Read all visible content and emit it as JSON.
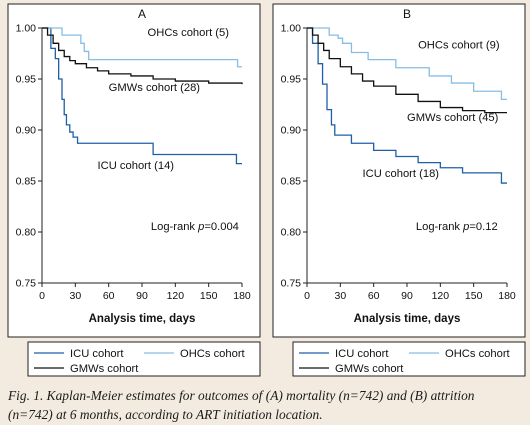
{
  "caption": "Fig. 1. Kaplan-Meier estimates for outcomes of (A) mortality (n=742) and (B) attrition (n=742) at 6 months, according to ART initiation location.",
  "legend": {
    "icu": "ICU cohort",
    "ohcs": "OHCs cohort",
    "gmws": "GMWs cohort"
  },
  "colors": {
    "icu": "#1f5fa8",
    "ohcs": "#86bde6",
    "gmws": "#111111"
  },
  "chart_data": [
    {
      "type": "line",
      "title": "A",
      "xlabel": "Analysis time, days",
      "ylabel": "",
      "xlim": [
        0,
        180
      ],
      "ylim": [
        0.75,
        1.0
      ],
      "xticks": [
        0,
        30,
        60,
        90,
        120,
        150,
        180
      ],
      "yticks": [
        1.0,
        0.95,
        0.9,
        0.85,
        0.8,
        0.75
      ],
      "yticklabels": [
        "1.00",
        "0.95",
        "0.90",
        "0.85",
        "0.80",
        "0.75"
      ],
      "annotations": [
        {
          "text": "OHCs cohort (5)",
          "x": 95,
          "y": 0.992
        },
        {
          "text": "GMWs cohort (28)",
          "x": 60,
          "y": 0.938
        },
        {
          "text": "ICU cohort (14)",
          "x": 50,
          "y": 0.862
        },
        {
          "text": "Log-rank ",
          "italic": "p",
          "rest": "=0.004",
          "x": 98,
          "y": 0.802
        }
      ],
      "series": [
        {
          "key": "icu",
          "name": "ICU cohort",
          "x": [
            0,
            8,
            12,
            15,
            18,
            20,
            22,
            25,
            28,
            32,
            100,
            175,
            180
          ],
          "y": [
            1.0,
            0.98,
            0.97,
            0.95,
            0.93,
            0.915,
            0.905,
            0.898,
            0.893,
            0.887,
            0.876,
            0.867,
            0.867
          ]
        },
        {
          "key": "ohcs",
          "name": "OHCs cohort",
          "x": [
            0,
            18,
            35,
            38,
            42,
            176,
            180
          ],
          "y": [
            1.0,
            0.993,
            0.985,
            0.977,
            0.969,
            0.962,
            0.962
          ]
        },
        {
          "key": "gmws",
          "name": "GMWs cohort",
          "x": [
            0,
            5,
            10,
            15,
            20,
            25,
            30,
            40,
            50,
            60,
            80,
            100,
            120,
            150,
            180
          ],
          "y": [
            1.0,
            0.993,
            0.985,
            0.978,
            0.972,
            0.968,
            0.965,
            0.961,
            0.958,
            0.955,
            0.953,
            0.95,
            0.948,
            0.946,
            0.945
          ]
        }
      ]
    },
    {
      "type": "line",
      "title": "B",
      "xlabel": "Analysis time, days",
      "ylabel": "",
      "xlim": [
        0,
        180
      ],
      "ylim": [
        0.75,
        1.0
      ],
      "xticks": [
        0,
        30,
        60,
        90,
        120,
        150,
        180
      ],
      "yticks": [
        1.0,
        0.95,
        0.9,
        0.85,
        0.8,
        0.75
      ],
      "yticklabels": [
        "1.00",
        "0.95",
        "0.90",
        "0.85",
        "0.80",
        "0.75"
      ],
      "annotations": [
        {
          "text": "OHCs cohort (9)",
          "x": 100,
          "y": 0.98
        },
        {
          "text": "GMWs cohort (45)",
          "x": 90,
          "y": 0.909
        },
        {
          "text": "ICU cohort (18)",
          "x": 50,
          "y": 0.854
        },
        {
          "text": "Log-rank ",
          "italic": "p",
          "rest": "=0.12",
          "x": 98,
          "y": 0.802
        }
      ],
      "series": [
        {
          "key": "icu",
          "name": "ICU cohort",
          "x": [
            0,
            5,
            10,
            14,
            18,
            22,
            25,
            40,
            60,
            80,
            100,
            120,
            140,
            175,
            180
          ],
          "y": [
            1.0,
            0.985,
            0.965,
            0.945,
            0.92,
            0.905,
            0.895,
            0.887,
            0.88,
            0.874,
            0.868,
            0.863,
            0.858,
            0.848,
            0.848
          ]
        },
        {
          "key": "ohcs",
          "name": "OHCs cohort",
          "x": [
            0,
            20,
            28,
            32,
            40,
            55,
            80,
            110,
            130,
            150,
            175,
            180
          ],
          "y": [
            1.0,
            0.993,
            0.99,
            0.985,
            0.976,
            0.969,
            0.961,
            0.953,
            0.946,
            0.938,
            0.93,
            0.93
          ]
        },
        {
          "key": "gmws",
          "name": "GMWs cohort",
          "x": [
            0,
            5,
            10,
            15,
            20,
            30,
            40,
            50,
            60,
            80,
            100,
            120,
            140,
            160,
            180
          ],
          "y": [
            1.0,
            0.993,
            0.985,
            0.978,
            0.97,
            0.962,
            0.955,
            0.948,
            0.943,
            0.935,
            0.928,
            0.922,
            0.919,
            0.917,
            0.917
          ]
        }
      ]
    }
  ]
}
